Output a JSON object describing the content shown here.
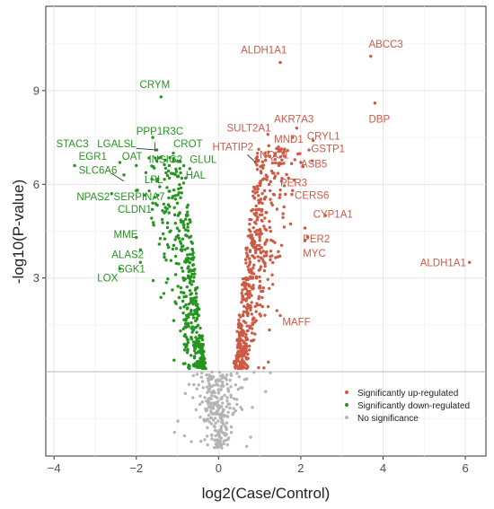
{
  "chart_data": {
    "type": "scatter",
    "title": "",
    "xlabel": "log2(Case/Control)",
    "ylabel": "-log10(P-value)",
    "xlim": [
      -4.2,
      6.5
    ],
    "ylim": [
      -2.7,
      11.7
    ],
    "xticks": [
      -4,
      -2,
      0,
      2,
      4,
      6
    ],
    "yticks": [
      3,
      6,
      9
    ],
    "xtick_labels": [
      "−4",
      "−2",
      "0",
      "2",
      "4",
      "6"
    ],
    "ytick_labels": [
      "3",
      "6",
      "9"
    ],
    "grid": true,
    "threshold_line_y": 0,
    "legend_position": "bottom-right",
    "colors": {
      "up": "#cc5a45",
      "down": "#24951f",
      "none": "#b4b4b4",
      "threshold": "#bfbfbf"
    },
    "series": [
      {
        "name": "Significantly up-regulated",
        "key": "up",
        "points": [],
        "generated_count": 520
      },
      {
        "name": "Significantly down-regulated",
        "key": "down",
        "points": [],
        "generated_count": 420
      },
      {
        "name": "No significance",
        "key": "none",
        "points": [],
        "generated_count": 260
      }
    ],
    "highlighted_genes": [
      {
        "name": "ABCC3",
        "x": 3.7,
        "y": 10.1,
        "group": "up",
        "lx": 3.65,
        "ly": 10.5,
        "anchor": "start"
      },
      {
        "name": "ALDH1A1",
        "x": 1.5,
        "y": 9.9,
        "group": "up",
        "lx": 1.1,
        "ly": 10.3,
        "anchor": "middle"
      },
      {
        "name": "DBP",
        "x": 3.8,
        "y": 8.6,
        "group": "up",
        "lx": 3.65,
        "ly": 8.1,
        "anchor": "start"
      },
      {
        "name": "AKR7A3",
        "x": 1.9,
        "y": 7.8,
        "group": "up",
        "lx": 1.35,
        "ly": 8.1,
        "anchor": "start"
      },
      {
        "name": "SULT2A1",
        "x": 1.2,
        "y": 7.6,
        "group": "up",
        "lx": 0.2,
        "ly": 7.8,
        "anchor": "start"
      },
      {
        "name": "CRYL1",
        "x": 2.3,
        "y": 7.4,
        "group": "up",
        "lx": 2.15,
        "ly": 7.55,
        "anchor": "start"
      },
      {
        "name": "MND1",
        "x": 1.8,
        "y": 7.5,
        "group": "up",
        "lx": 1.35,
        "ly": 7.45,
        "anchor": "start"
      },
      {
        "name": "GSTP1",
        "x": 2.2,
        "y": 7.1,
        "group": "up",
        "lx": 2.25,
        "ly": 7.15,
        "anchor": "start"
      },
      {
        "name": "HTATIP2",
        "x": 0.9,
        "y": 6.7,
        "group": "up",
        "lx": -0.15,
        "ly": 7.2,
        "anchor": "start"
      },
      {
        "name": "NQO1",
        "x": 1.6,
        "y": 6.9,
        "group": "up",
        "lx": 1.0,
        "ly": 6.95,
        "anchor": "start"
      },
      {
        "name": "ASB5",
        "x": 2.0,
        "y": 6.7,
        "group": "up",
        "lx": 2.0,
        "ly": 6.65,
        "anchor": "start"
      },
      {
        "name": "PER3",
        "x": 1.7,
        "y": 6.2,
        "group": "up",
        "lx": 1.5,
        "ly": 6.05,
        "anchor": "start"
      },
      {
        "name": "CERS6",
        "x": 1.8,
        "y": 5.8,
        "group": "up",
        "lx": 1.85,
        "ly": 5.65,
        "anchor": "start"
      },
      {
        "name": "CYP1A1",
        "x": 2.6,
        "y": 5.0,
        "group": "up",
        "lx": 2.3,
        "ly": 5.05,
        "anchor": "start"
      },
      {
        "name": "PER2",
        "x": 2.1,
        "y": 4.6,
        "group": "up",
        "lx": 2.05,
        "ly": 4.25,
        "anchor": "start"
      },
      {
        "name": "MYC",
        "x": 2.1,
        "y": 4.2,
        "group": "up",
        "lx": 2.05,
        "ly": 3.8,
        "anchor": "start"
      },
      {
        "name": "ALDH1A1",
        "x": 6.1,
        "y": 3.5,
        "group": "up",
        "lx": 4.9,
        "ly": 3.5,
        "anchor": "start"
      },
      {
        "name": "MAFF",
        "x": 1.5,
        "y": 1.8,
        "group": "up",
        "lx": 1.55,
        "ly": 1.6,
        "anchor": "start"
      },
      {
        "name": "CRYM",
        "x": -1.4,
        "y": 8.8,
        "group": "down",
        "lx": -1.55,
        "ly": 9.2,
        "anchor": "middle"
      },
      {
        "name": "PPP1R3C",
        "x": -1.6,
        "y": 7.5,
        "group": "down",
        "lx": -2.0,
        "ly": 7.7,
        "anchor": "start"
      },
      {
        "name": "CROT",
        "x": -1.1,
        "y": 7.0,
        "group": "down",
        "lx": -1.1,
        "ly": 7.3,
        "anchor": "start"
      },
      {
        "name": "LGALSL",
        "x": -1.5,
        "y": 7.1,
        "group": "down",
        "lx": -2.95,
        "ly": 7.3,
        "anchor": "start"
      },
      {
        "name": "STAC3",
        "x": -3.5,
        "y": 6.6,
        "group": "down",
        "lx": -3.95,
        "ly": 7.3,
        "anchor": "start"
      },
      {
        "name": "EGR1",
        "x": -2.4,
        "y": 6.7,
        "group": "down",
        "lx": -3.4,
        "ly": 6.9,
        "anchor": "start"
      },
      {
        "name": "OAT",
        "x": -2.0,
        "y": 6.6,
        "group": "down",
        "lx": -2.35,
        "ly": 6.9,
        "anchor": "start"
      },
      {
        "name": "INSIG2",
        "x": -1.2,
        "y": 6.6,
        "group": "down",
        "lx": -1.7,
        "ly": 6.8,
        "anchor": "start"
      },
      {
        "name": "GLUL",
        "x": -0.7,
        "y": 6.5,
        "group": "down",
        "lx": -0.7,
        "ly": 6.8,
        "anchor": "start"
      },
      {
        "name": "SLC6A6",
        "x": -2.3,
        "y": 6.3,
        "group": "down",
        "lx": -3.4,
        "ly": 6.45,
        "anchor": "start"
      },
      {
        "name": "HAL",
        "x": -0.8,
        "y": 6.2,
        "group": "down",
        "lx": -0.8,
        "ly": 6.3,
        "anchor": "start"
      },
      {
        "name": "LPL",
        "x": -1.5,
        "y": 6.1,
        "group": "down",
        "lx": -1.8,
        "ly": 6.15,
        "anchor": "start"
      },
      {
        "name": "NPAS2",
        "x": -2.6,
        "y": 5.7,
        "group": "down",
        "lx": -3.45,
        "ly": 5.6,
        "anchor": "start"
      },
      {
        "name": "SERPINA7",
        "x": -2.0,
        "y": 5.8,
        "group": "down",
        "lx": -2.55,
        "ly": 5.6,
        "anchor": "start"
      },
      {
        "name": "CLDN1",
        "x": -1.6,
        "y": 5.4,
        "group": "down",
        "lx": -2.45,
        "ly": 5.2,
        "anchor": "start"
      },
      {
        "name": "MME",
        "x": -2.0,
        "y": 4.3,
        "group": "down",
        "lx": -2.55,
        "ly": 4.4,
        "anchor": "start"
      },
      {
        "name": "ALAS2",
        "x": -1.9,
        "y": 3.9,
        "group": "down",
        "lx": -2.6,
        "ly": 3.75,
        "anchor": "start"
      },
      {
        "name": "SGK1",
        "x": -1.9,
        "y": 3.5,
        "group": "down",
        "lx": -2.45,
        "ly": 3.3,
        "anchor": "start"
      },
      {
        "name": "LOX",
        "x": -2.4,
        "y": 3.3,
        "group": "down",
        "lx": -2.95,
        "ly": 3.0,
        "anchor": "start"
      }
    ],
    "leader_lines": [
      {
        "from": "PPP1R3C",
        "x1": -1.55,
        "y1": 7.35,
        "x2": -1.55,
        "y2": 7.05
      },
      {
        "from": "LGALSL",
        "x1": -2.0,
        "y1": 7.15,
        "x2": -1.5,
        "y2": 7.1
      },
      {
        "from": "SLC6A6",
        "x1": -2.6,
        "y1": 6.35,
        "x2": -2.3,
        "y2": 6.1
      },
      {
        "from": "HTATIP2",
        "x1": 0.7,
        "y1": 6.95,
        "x2": 0.9,
        "y2": 6.7
      }
    ]
  }
}
